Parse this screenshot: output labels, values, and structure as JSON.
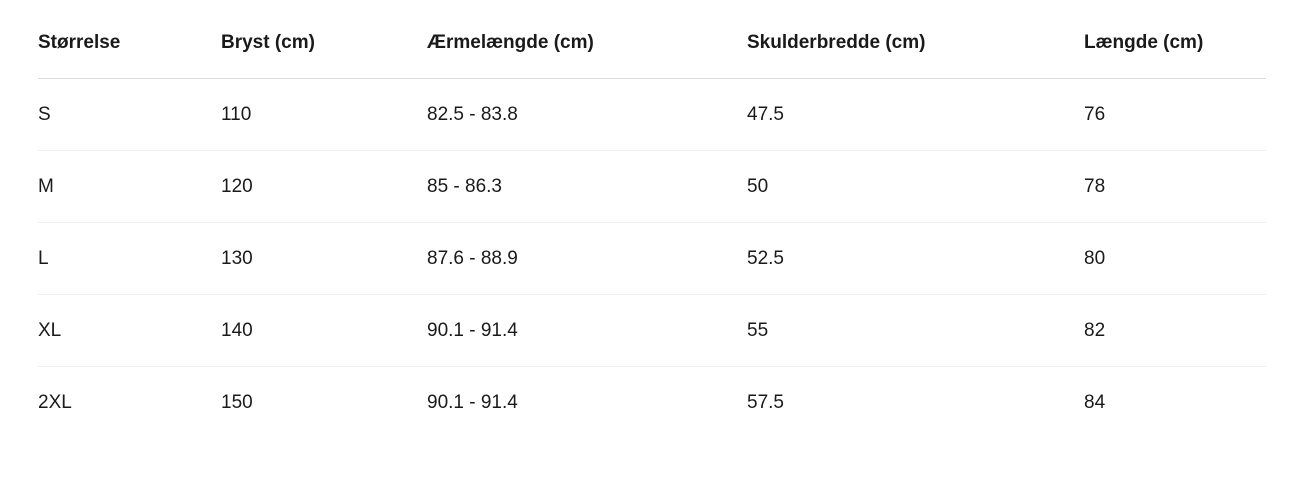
{
  "table": {
    "headers": [
      "Størrelse",
      "Bryst (cm)",
      "Ærmelængde (cm)",
      "Skulderbredde (cm)",
      "Længde (cm)"
    ],
    "rows": [
      [
        "S",
        110,
        "82.5 - 83.8",
        47.5,
        76
      ],
      [
        "M",
        120,
        "85 - 86.3",
        50,
        78
      ],
      [
        "L",
        130,
        "87.6 - 88.9",
        52.5,
        80
      ],
      [
        "XL",
        140,
        "90.1 - 91.4",
        55,
        82
      ],
      [
        "2XL",
        150,
        "90.1 - 91.4",
        57.5,
        84
      ]
    ]
  }
}
